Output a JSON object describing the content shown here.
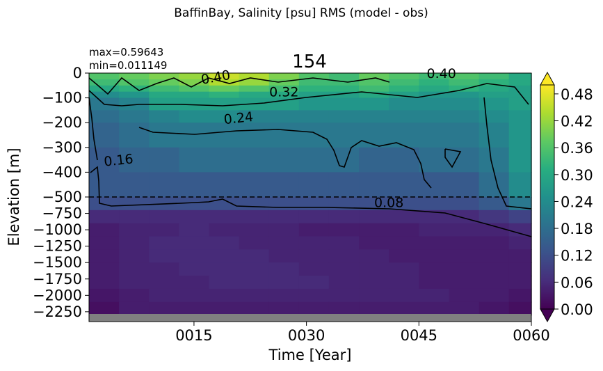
{
  "figure": {
    "suptitle": "BaffinBay, Salinity [psu] RMS (model - obs)",
    "title": "154",
    "stats": {
      "max": "max=0.59643",
      "min": "min=0.011149"
    }
  },
  "chart_data": {
    "type": "heatmap",
    "colormap": "viridis",
    "xlabel": "Time [Year]",
    "ylabel": "Elevation [m]",
    "xlim": [
      1,
      60
    ],
    "xticks": [
      {
        "value": 15,
        "label": "0015"
      },
      {
        "value": 30,
        "label": "0030"
      },
      {
        "value": 45,
        "label": "0045"
      },
      {
        "value": 60,
        "label": "0060"
      }
    ],
    "y_axis_note": "piecewise scale: linear 0 to -500 m in upper panel section, linear -500 to -2400 m in lower section; dashed line marks -500",
    "yticks": [
      "0",
      "−100",
      "−200",
      "−300",
      "−400",
      "−500",
      "−750",
      "−1000",
      "−1250",
      "−1500",
      "−1750",
      "−2000",
      "−2250"
    ],
    "ytick_values": [
      0,
      -100,
      -200,
      -300,
      -400,
      -500,
      -750,
      -1000,
      -1250,
      -1500,
      -1750,
      -2000,
      -2250
    ],
    "colorbar": {
      "min": 0.0,
      "max": 0.5,
      "ticks": [
        "0.00",
        "0.06",
        "0.12",
        "0.18",
        "0.24",
        "0.30",
        "0.36",
        "0.42",
        "0.48"
      ],
      "tick_values": [
        0.0,
        0.06,
        0.12,
        0.18,
        0.24,
        0.3,
        0.36,
        0.42,
        0.48
      ],
      "extend": "both"
    },
    "depth_levels": [
      0,
      -25,
      -50,
      -75,
      -100,
      -150,
      -200,
      -300,
      -400,
      -500,
      -700,
      -900,
      -1100,
      -1300,
      -1500,
      -1700,
      -1900,
      -2100,
      -2300
    ],
    "column_years": [
      1,
      5,
      9,
      13,
      17,
      21,
      25,
      29,
      33,
      37,
      41,
      45,
      49,
      53,
      57,
      60
    ],
    "values": [
      [
        0.36,
        0.38,
        0.4,
        0.42,
        0.46,
        0.44,
        0.4,
        0.36,
        0.34,
        0.38,
        0.36,
        0.34,
        0.36,
        0.34,
        0.3,
        0.3
      ],
      [
        0.34,
        0.36,
        0.38,
        0.4,
        0.44,
        0.42,
        0.38,
        0.34,
        0.34,
        0.36,
        0.34,
        0.32,
        0.34,
        0.32,
        0.3,
        0.3
      ],
      [
        0.3,
        0.32,
        0.34,
        0.36,
        0.38,
        0.36,
        0.34,
        0.32,
        0.32,
        0.34,
        0.32,
        0.3,
        0.32,
        0.3,
        0.28,
        0.28
      ],
      [
        0.24,
        0.26,
        0.3,
        0.3,
        0.32,
        0.3,
        0.3,
        0.28,
        0.28,
        0.3,
        0.28,
        0.26,
        0.26,
        0.28,
        0.28,
        0.28
      ],
      [
        0.2,
        0.22,
        0.28,
        0.28,
        0.28,
        0.28,
        0.28,
        0.26,
        0.26,
        0.26,
        0.24,
        0.24,
        0.24,
        0.26,
        0.28,
        0.28
      ],
      [
        0.18,
        0.2,
        0.22,
        0.24,
        0.24,
        0.22,
        0.22,
        0.22,
        0.22,
        0.22,
        0.22,
        0.22,
        0.22,
        0.24,
        0.26,
        0.28
      ],
      [
        0.16,
        0.18,
        0.2,
        0.2,
        0.2,
        0.2,
        0.2,
        0.2,
        0.2,
        0.2,
        0.2,
        0.2,
        0.2,
        0.22,
        0.26,
        0.28
      ],
      [
        0.14,
        0.16,
        0.16,
        0.18,
        0.18,
        0.18,
        0.18,
        0.18,
        0.18,
        0.16,
        0.16,
        0.18,
        0.18,
        0.2,
        0.26,
        0.28
      ],
      [
        0.14,
        0.14,
        0.14,
        0.14,
        0.14,
        0.14,
        0.14,
        0.14,
        0.14,
        0.14,
        0.14,
        0.14,
        0.14,
        0.18,
        0.24,
        0.26
      ],
      [
        0.12,
        0.12,
        0.12,
        0.12,
        0.12,
        0.12,
        0.12,
        0.12,
        0.12,
        0.12,
        0.12,
        0.12,
        0.12,
        0.14,
        0.2,
        0.24
      ],
      [
        0.06,
        0.06,
        0.06,
        0.06,
        0.06,
        0.06,
        0.06,
        0.06,
        0.06,
        0.06,
        0.06,
        0.06,
        0.06,
        0.08,
        0.1,
        0.1
      ],
      [
        0.04,
        0.05,
        0.05,
        0.06,
        0.05,
        0.05,
        0.05,
        0.04,
        0.04,
        0.04,
        0.04,
        0.05,
        0.05,
        0.05,
        0.06,
        0.07
      ],
      [
        0.04,
        0.05,
        0.06,
        0.06,
        0.06,
        0.05,
        0.05,
        0.05,
        0.05,
        0.04,
        0.04,
        0.04,
        0.04,
        0.04,
        0.05,
        0.05
      ],
      [
        0.04,
        0.05,
        0.06,
        0.06,
        0.06,
        0.06,
        0.05,
        0.05,
        0.05,
        0.05,
        0.04,
        0.04,
        0.04,
        0.04,
        0.04,
        0.04
      ],
      [
        0.04,
        0.05,
        0.05,
        0.06,
        0.06,
        0.06,
        0.06,
        0.05,
        0.05,
        0.05,
        0.05,
        0.04,
        0.04,
        0.04,
        0.04,
        0.04
      ],
      [
        0.04,
        0.05,
        0.05,
        0.05,
        0.06,
        0.06,
        0.06,
        0.06,
        0.05,
        0.05,
        0.05,
        0.04,
        0.04,
        0.04,
        0.04,
        0.03
      ],
      [
        0.03,
        0.04,
        0.05,
        0.05,
        0.05,
        0.05,
        0.05,
        0.05,
        0.05,
        0.05,
        0.05,
        0.05,
        0.04,
        0.04,
        0.03,
        0.03
      ],
      [
        0.02,
        0.04,
        0.04,
        0.04,
        0.04,
        0.04,
        0.04,
        0.04,
        0.04,
        0.04,
        0.04,
        0.04,
        0.04,
        0.03,
        0.02,
        0.02
      ],
      [
        0.02,
        0.03,
        0.03,
        0.03,
        0.03,
        0.03,
        0.03,
        0.03,
        0.03,
        0.03,
        0.03,
        0.03,
        0.03,
        0.03,
        0.02,
        0.02
      ]
    ],
    "contour_labels": [
      {
        "text": "0.40",
        "x": 18,
        "y": -15
      },
      {
        "text": "0.40",
        "x": 48,
        "y": 0
      },
      {
        "text": "0.32",
        "x": 27,
        "y": -75
      },
      {
        "text": "0.24",
        "x": 21,
        "y": -180
      },
      {
        "text": "0.16",
        "x": 5,
        "y": -350
      },
      {
        "text": "0.08",
        "x": 41,
        "y": -580
      }
    ],
    "reference_line": {
      "y": -500,
      "style": "dashed"
    },
    "missing_color": "#808080"
  }
}
